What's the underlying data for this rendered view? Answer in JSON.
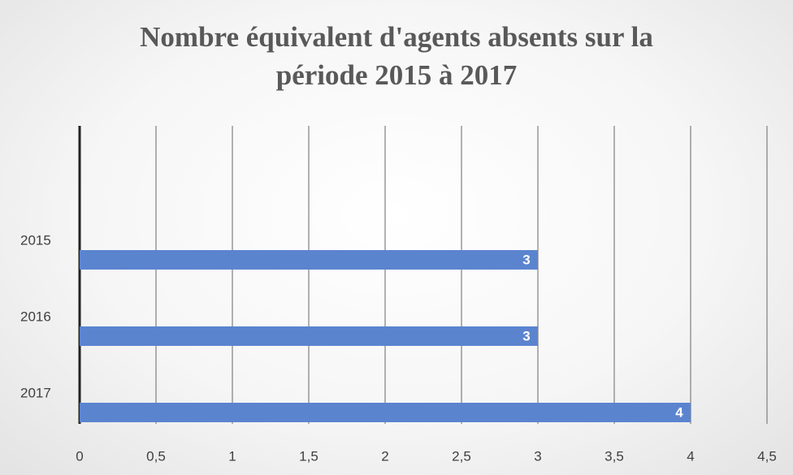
{
  "chart_data": {
    "type": "bar",
    "orientation": "horizontal",
    "title": "Nombre équivalent d'agents absents sur la période 2015 à 2017",
    "categories": [
      "2015",
      "2016",
      "2017"
    ],
    "values": [
      3,
      3,
      4
    ],
    "color": "#5b84cf",
    "xlim": [
      0,
      4.5
    ],
    "xticks": [
      0,
      {
        "value": 0.5,
        "label": "0,5"
      },
      1,
      {
        "value": 1.5,
        "label": "1,5"
      },
      2,
      {
        "value": 2.5,
        "label": "2,5"
      },
      3,
      {
        "value": 3.5,
        "label": "3,5"
      },
      4,
      {
        "value": 4.5,
        "label": "4,5"
      }
    ],
    "grid": true
  }
}
